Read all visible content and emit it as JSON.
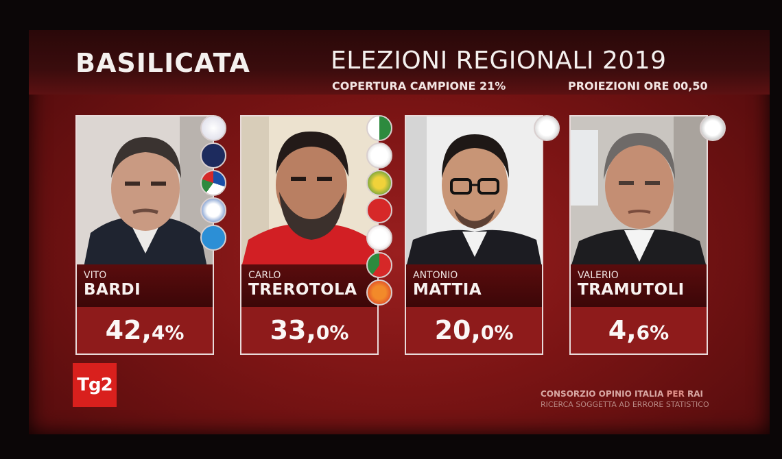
{
  "header": {
    "region": "BASILICATA",
    "title": "ELEZIONI REGIONALI 2019",
    "coverage": "COPERTURA CAMPIONE 21%",
    "projection": "PROIEZIONI ORE 00,50"
  },
  "candidates": [
    {
      "first_name": "VITO",
      "last_name": "BARDI",
      "pct_int": "42,",
      "pct_dec": "4",
      "pct_sign": "%",
      "share": 42.4
    },
    {
      "first_name": "CARLO",
      "last_name": "TREROTOLA",
      "pct_int": "33,",
      "pct_dec": "0",
      "pct_sign": "%",
      "share": 33.0
    },
    {
      "first_name": "ANTONIO",
      "last_name": "MATTIA",
      "pct_int": "20,",
      "pct_dec": "0",
      "pct_sign": "%",
      "share": 20.0
    },
    {
      "first_name": "VALERIO",
      "last_name": "TRAMUTOLI",
      "pct_int": "4,",
      "pct_dec": "6",
      "pct_sign": "%",
      "share": 4.6
    }
  ],
  "colors": {
    "background": "#7a1414",
    "logo_red": "#d9201d",
    "accent_text": "#f4f0ee"
  },
  "branding": {
    "logo": "Tg2",
    "source_line1": "CONSORZIO OPINIO ITALIA",
    "source_per": " PER ",
    "source_rai": "RAI",
    "source_line2": "RICERCA SOGGETTA AD ERRORE STATISTICO"
  }
}
